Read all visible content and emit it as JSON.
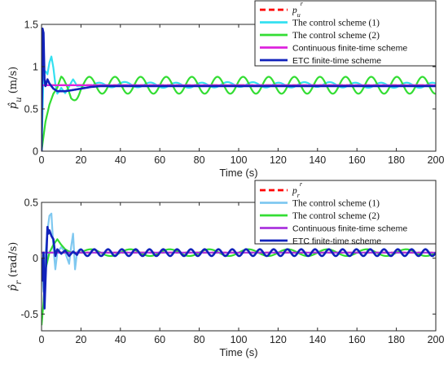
{
  "chart_data": [
    {
      "type": "line",
      "ylabel": "p̂u (m/s)",
      "ylabel_parts": {
        "sym": "p̂",
        "sub": "u",
        "unit": " (m/s)"
      },
      "xlabel": "Time (s)",
      "xlim": [
        0,
        200
      ],
      "ylim": [
        0,
        1.5
      ],
      "xticks": [
        0,
        20,
        40,
        60,
        80,
        100,
        120,
        140,
        160,
        180,
        200
      ],
      "yticks": [
        0,
        0.5,
        1,
        1.5
      ],
      "ytick_labels": [
        "0",
        "0.5",
        "1",
        "1.5"
      ],
      "grid": false,
      "legend_position": "top-right",
      "series": [
        {
          "name": "pu^r",
          "label_parts": {
            "sym": "p",
            "sub": "u",
            "sup": "r"
          },
          "color": "#ff0000",
          "style": "dashed",
          "x": [
            0,
            200
          ],
          "y": [
            0.78,
            0.78
          ]
        },
        {
          "name": "The control scheme (1)",
          "color": "#33e0f0",
          "style": "solid",
          "x": [
            0,
            1,
            2,
            3,
            4,
            5,
            6,
            7,
            8,
            10,
            12,
            14,
            16,
            18,
            20,
            30,
            40,
            60,
            80,
            100,
            120,
            140,
            160,
            180,
            200
          ],
          "y": [
            0,
            0.9,
            0.92,
            0.88,
            1.02,
            1.1,
            0.98,
            0.8,
            0.7,
            0.78,
            0.7,
            0.75,
            0.82,
            0.75,
            0.78,
            0.78,
            0.79,
            0.78,
            0.78,
            0.79,
            0.78,
            0.79,
            0.78,
            0.78,
            0.78
          ],
          "wobble_amplitude": 0.03,
          "wobble_period": 13
        },
        {
          "name": "The control scheme (2)",
          "color": "#33dd33",
          "style": "solid",
          "x": [
            0,
            2,
            4,
            6,
            8,
            10,
            12,
            15,
            18,
            20,
            200
          ],
          "y": [
            0,
            0.35,
            0.55,
            0.68,
            0.75,
            0.8,
            0.72,
            0.65,
            0.72,
            0.78,
            0.78
          ],
          "wobble_start": 8,
          "wobble_amplitude": 0.1,
          "wobble_period": 13
        },
        {
          "name": "Continuous finite-time scheme",
          "color": "#dd22dd",
          "style": "solid",
          "x": [
            0,
            200
          ],
          "y": [
            0.78,
            0.78
          ]
        },
        {
          "name": "ETC finite-time scheme",
          "color": "#1122bb",
          "style": "solid",
          "x": [
            0,
            0.5,
            1,
            1.5,
            2,
            3,
            4,
            6,
            8,
            10,
            12,
            15,
            20,
            25,
            30,
            40,
            60,
            80,
            100,
            120,
            140,
            160,
            180,
            200
          ],
          "y": [
            0,
            1.45,
            1.4,
            0.85,
            0.77,
            0.85,
            0.8,
            0.74,
            0.71,
            0.71,
            0.71,
            0.72,
            0.74,
            0.76,
            0.77,
            0.77,
            0.77,
            0.77,
            0.77,
            0.77,
            0.77,
            0.77,
            0.77,
            0.77
          ]
        }
      ]
    },
    {
      "type": "line",
      "ylabel": "p̂r (rad/s)",
      "ylabel_parts": {
        "sym": "p̂",
        "sub": "r",
        "unit": " (rad/s)"
      },
      "xlabel": "Time (s)",
      "xlim": [
        0,
        200
      ],
      "ylim": [
        -0.65,
        0.5
      ],
      "xticks": [
        0,
        20,
        40,
        60,
        80,
        100,
        120,
        140,
        160,
        180,
        200
      ],
      "yticks": [
        -0.5,
        0,
        0.5
      ],
      "ytick_labels": [
        "-0.5",
        "0",
        "0.5"
      ],
      "grid": false,
      "legend_position": "top-right",
      "series": [
        {
          "name": "pr^r",
          "label_parts": {
            "sym": "p",
            "sub": "r",
            "sup": "r"
          },
          "color": "#ff0000",
          "style": "dashed",
          "x": [
            0,
            200
          ],
          "y": [
            0.05,
            0.05
          ]
        },
        {
          "name": "The control scheme (1)",
          "color": "#7fc8f0",
          "style": "solid",
          "x": [
            0,
            1,
            2,
            3,
            4,
            5,
            6,
            7,
            8,
            10,
            12,
            14,
            15,
            16,
            17,
            18,
            20,
            200
          ],
          "y": [
            0,
            -0.3,
            0.05,
            0.25,
            0.38,
            0.4,
            0.1,
            -0.1,
            0.05,
            0.1,
            0.05,
            -0.05,
            0.1,
            0.22,
            -0.1,
            0.05,
            0.05,
            0.05
          ],
          "wobble_start": 18,
          "wobble_amplitude": 0.03,
          "wobble_period": 7
        },
        {
          "name": "The control scheme (2)",
          "color": "#33dd33",
          "style": "solid",
          "x": [
            0,
            1,
            2,
            4,
            6,
            8,
            10,
            12,
            15,
            18,
            20,
            200
          ],
          "y": [
            -0.6,
            -0.4,
            -0.1,
            0.05,
            0.12,
            0.17,
            0.12,
            0.08,
            0.05,
            0.05,
            0.05,
            0.05
          ],
          "wobble_start": 20,
          "wobble_amplitude": 0.03,
          "wobble_period": 20
        },
        {
          "name": "Continuous finite-time scheme",
          "color": "#aa33dd",
          "style": "solid",
          "x": [
            0,
            200
          ],
          "y": [
            0.05,
            0.05
          ]
        },
        {
          "name": "ETC finite-time scheme",
          "color": "#1122bb",
          "style": "solid",
          "x": [
            0,
            0.5,
            1,
            1.5,
            2,
            3,
            3.5,
            4,
            5,
            6,
            7,
            8,
            10,
            12,
            14,
            16,
            18,
            20,
            200
          ],
          "y": [
            0,
            -0.2,
            0.05,
            -0.45,
            -0.2,
            0.28,
            0.22,
            0.25,
            0.2,
            0.17,
            0.02,
            0.08,
            0.04,
            0.07,
            0.02,
            0.06,
            0.03,
            0.05,
            0.05
          ],
          "wobble_start": 18,
          "wobble_amplitude": 0.03,
          "wobble_period": 7
        }
      ]
    }
  ]
}
